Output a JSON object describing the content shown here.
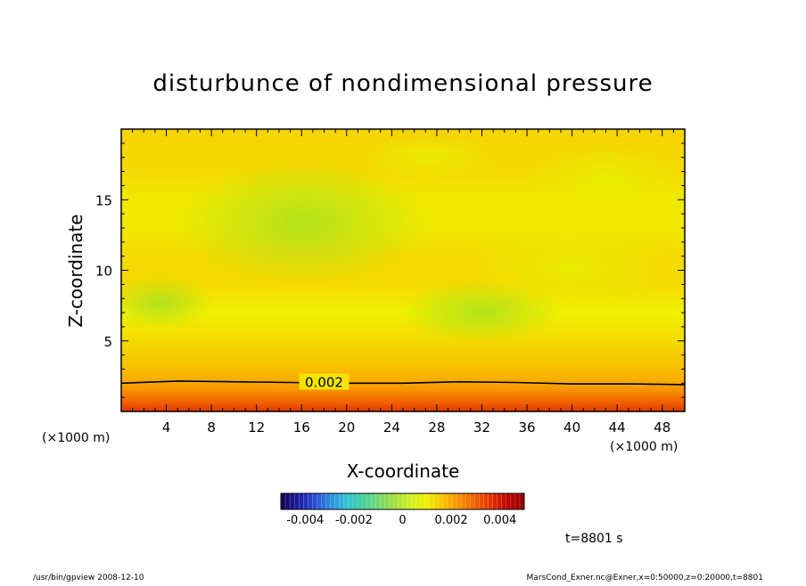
{
  "chart_data": {
    "type": "heatmap",
    "title": "disturbunce of nondimensional pressure",
    "xlabel": "X-coordinate",
    "ylabel": "Z-coordinate",
    "x_unit": "(×1000 m)",
    "y_unit": "(×1000 m)",
    "xlim": [
      0,
      50
    ],
    "ylim": [
      0,
      20
    ],
    "x_ticks": [
      4,
      8,
      12,
      16,
      20,
      24,
      28,
      32,
      36,
      40,
      44,
      48
    ],
    "y_ticks": [
      5,
      10,
      15
    ],
    "contours": [
      {
        "label": "0.002",
        "value": 0.002,
        "x": [
          0,
          5,
          10,
          15,
          20,
          25,
          30,
          35,
          40,
          45,
          50
        ],
        "z": [
          2.0,
          2.15,
          2.1,
          2.05,
          2.0,
          2.0,
          2.1,
          2.05,
          1.95,
          1.95,
          1.9
        ]
      }
    ],
    "field": {
      "z_levels": [
        0,
        0.5,
        1,
        1.5,
        2,
        3,
        5,
        7,
        9,
        11,
        13,
        15,
        17,
        20
      ],
      "values": [
        0.0036,
        0.0031,
        0.0027,
        0.0023,
        0.002,
        0.0017,
        0.0013,
        0.001,
        0.0013,
        0.0013,
        0.0011,
        0.0011,
        0.0013,
        0.0014
      ]
    },
    "colorbar": {
      "range": [
        -0.005,
        0.005
      ],
      "ticks": [
        "-0.004",
        "-0.002",
        "0",
        "0.002",
        "0.004"
      ],
      "colors": [
        "#1a0050",
        "#1a1aa0",
        "#2a4ad0",
        "#2a8ae0",
        "#30c0d8",
        "#40d0a0",
        "#70d870",
        "#a0e040",
        "#d0f020",
        "#f0f000",
        "#f8c000",
        "#f89000",
        "#f06000",
        "#e03000",
        "#c00000",
        "#900000"
      ]
    },
    "time_label": "t=8801 s"
  },
  "footer": {
    "left": "/usr/bin/gpview   2008-12-10",
    "right": "MarsCond_Exner.nc@Exner,x=0:50000,z=0:20000,t=8801"
  }
}
